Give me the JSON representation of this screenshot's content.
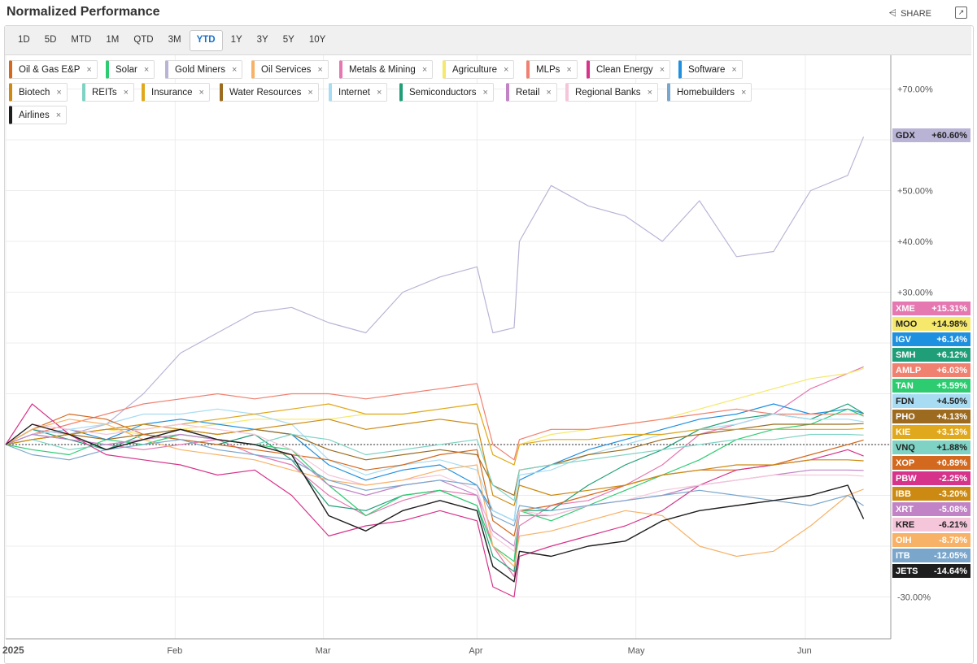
{
  "header": {
    "title": "Normalized Performance",
    "share_label": "SHARE"
  },
  "timeframes": [
    "1D",
    "5D",
    "MTD",
    "1M",
    "QTD",
    "3M",
    "YTD",
    "1Y",
    "3Y",
    "5Y",
    "10Y"
  ],
  "active_timeframe": "YTD",
  "legend": [
    {
      "label": "Oil & Gas E&P",
      "color": "#d2691e"
    },
    {
      "label": "Solar",
      "color": "#2ecc71"
    },
    {
      "label": "Gold Miners",
      "color": "#b9b4d6"
    },
    {
      "label": "Oil Services",
      "color": "#f7b267"
    },
    {
      "label": "Metals & Mining",
      "color": "#e577b1"
    },
    {
      "label": "Agriculture",
      "color": "#f5e86a"
    },
    {
      "label": "MLPs",
      "color": "#f08070"
    },
    {
      "label": "Clean Energy",
      "color": "#d6338a"
    },
    {
      "label": "Software",
      "color": "#1e90e0"
    },
    {
      "label": "Biotech",
      "color": "#cc8a12"
    },
    {
      "label": "REITs",
      "color": "#7fd3c4"
    },
    {
      "label": "Insurance",
      "color": "#e0a81c"
    },
    {
      "label": "Water Resources",
      "color": "#9c6b1f"
    },
    {
      "label": "Internet",
      "color": "#a8dcf2"
    },
    {
      "label": "Semiconductors",
      "color": "#1f9e77"
    },
    {
      "label": "Retail",
      "color": "#c183c6"
    },
    {
      "label": "Regional Banks",
      "color": "#f5c6da"
    },
    {
      "label": "Homebuilders",
      "color": "#7aa6cc"
    },
    {
      "label": "Airlines",
      "color": "#1e1e1e"
    }
  ],
  "chart_data": {
    "type": "line",
    "ylabel_ticks": [
      "+70.00%",
      "+50.00%",
      "+40.00%",
      "+30.00%",
      "-30.00%"
    ],
    "x_tick_labels": [
      "2025",
      "Feb",
      "Mar",
      "Apr",
      "May",
      "Jun"
    ],
    "ylim": [
      -35,
      75
    ],
    "grid": true,
    "legend_position": "top-left",
    "x": [
      "2025-01-02",
      "2025-01-07",
      "2025-01-14",
      "2025-01-21",
      "2025-01-28",
      "2025-02-04",
      "2025-02-11",
      "2025-02-18",
      "2025-02-25",
      "2025-03-04",
      "2025-03-11",
      "2025-03-18",
      "2025-03-25",
      "2025-04-01",
      "2025-04-04",
      "2025-04-08",
      "2025-04-09",
      "2025-04-15",
      "2025-04-22",
      "2025-04-29",
      "2025-05-06",
      "2025-05-13",
      "2025-05-20",
      "2025-05-27",
      "2025-06-03",
      "2025-06-10",
      "2025-06-13"
    ],
    "series": [
      {
        "name": "GDX",
        "value_label": "+60.60%",
        "color": "#b9b4d6",
        "values": [
          0,
          3,
          2,
          4,
          10,
          18,
          22,
          26,
          27,
          24,
          22,
          30,
          33,
          35,
          22,
          23,
          40,
          51,
          47,
          45,
          40,
          48,
          37,
          38,
          50,
          53,
          60.6
        ]
      },
      {
        "name": "XME",
        "value_label": "+15.31%",
        "color": "#e577b1",
        "values": [
          0,
          2,
          1,
          0,
          -1,
          0,
          1,
          -2,
          -4,
          -10,
          -14,
          -11,
          -9,
          -10,
          -20,
          -26,
          -16,
          -12,
          -11,
          -8,
          -4,
          2,
          4,
          6,
          11,
          14,
          15.31
        ]
      },
      {
        "name": "MOO",
        "value_label": "+14.98%",
        "color": "#f5e86a",
        "values": [
          0,
          1,
          2,
          3,
          2,
          3,
          4,
          5,
          5,
          5,
          6,
          6,
          7,
          8,
          -2,
          -4,
          0,
          2,
          3,
          4,
          5,
          7,
          9,
          11,
          13,
          14,
          14.98
        ]
      },
      {
        "name": "IGV",
        "value_label": "+6.14%",
        "color": "#1e90e0",
        "values": [
          0,
          2,
          3,
          1,
          4,
          5,
          4,
          3,
          2,
          -4,
          -7,
          -5,
          -4,
          -8,
          -13,
          -15,
          -7,
          -4,
          -1,
          1,
          3,
          5,
          6,
          8,
          6,
          7,
          6.14
        ]
      },
      {
        "name": "SMH",
        "value_label": "+6.12%",
        "color": "#1f9e77",
        "values": [
          0,
          3,
          1,
          -1,
          2,
          1,
          0,
          2,
          -3,
          -12,
          -13,
          -10,
          -9,
          -12,
          -22,
          -25,
          -13,
          -13,
          -8,
          -4,
          -1,
          3,
          5,
          6,
          5,
          8,
          6.12
        ]
      },
      {
        "name": "AMLP",
        "value_label": "+6.03%",
        "color": "#f08070",
        "values": [
          0,
          2,
          4,
          6,
          8,
          9,
          10,
          9,
          10,
          10,
          9,
          10,
          11,
          12,
          0,
          -3,
          1,
          3,
          3,
          4,
          5,
          6,
          7,
          6,
          6,
          6,
          6.03
        ]
      },
      {
        "name": "TAN",
        "value_label": "+5.59%",
        "color": "#2ecc71",
        "values": [
          0,
          -1,
          -2,
          1,
          0,
          2,
          1,
          0,
          -1,
          -8,
          -14,
          -10,
          -9,
          -12,
          -20,
          -23,
          -13,
          -15,
          -12,
          -9,
          -6,
          -3,
          1,
          3,
          4,
          7,
          5.59
        ]
      },
      {
        "name": "FDN",
        "value_label": "+4.50%",
        "color": "#a8dcf2",
        "values": [
          0,
          2,
          3,
          4,
          6,
          6,
          7,
          6,
          4,
          -3,
          -6,
          -4,
          -3,
          -5,
          -13,
          -15,
          -6,
          -5,
          -2,
          0,
          2,
          3,
          4,
          6,
          5,
          5,
          4.5
        ]
      },
      {
        "name": "PHO",
        "value_label": "+4.13%",
        "color": "#9c6b1f",
        "values": [
          0,
          1,
          2,
          1,
          2,
          3,
          2,
          3,
          2,
          -1,
          -3,
          -2,
          -1,
          -2,
          -8,
          -10,
          -5,
          -4,
          -2,
          -1,
          1,
          2,
          3,
          4,
          4,
          4,
          4.13
        ]
      },
      {
        "name": "KIE",
        "value_label": "+3.13%",
        "color": "#e0a81c",
        "values": [
          0,
          1,
          2,
          3,
          3,
          4,
          5,
          6,
          7,
          8,
          6,
          6,
          7,
          8,
          -2,
          -4,
          0,
          1,
          1,
          2,
          2,
          3,
          3,
          3,
          3,
          3,
          3.13
        ]
      },
      {
        "name": "VNQ",
        "value_label": "+1.88%",
        "color": "#7fd3c4",
        "values": [
          0,
          1,
          -1,
          0,
          1,
          2,
          1,
          0,
          2,
          1,
          -2,
          -1,
          0,
          1,
          -8,
          -11,
          -5,
          -4,
          -3,
          -2,
          -1,
          0,
          1,
          1,
          2,
          2,
          1.88
        ]
      },
      {
        "name": "XOP",
        "value_label": "+0.89%",
        "color": "#d2691e",
        "values": [
          0,
          3,
          6,
          5,
          2,
          1,
          0,
          -1,
          -2,
          -3,
          -5,
          -4,
          -2,
          -1,
          -15,
          -18,
          -13,
          -12,
          -10,
          -8,
          -6,
          -5,
          -5,
          -4,
          -2,
          0,
          0.89
        ]
      },
      {
        "name": "PBW",
        "value_label": "-2.25%",
        "color": "#d6338a",
        "values": [
          0,
          8,
          2,
          -2,
          -3,
          -4,
          -6,
          -5,
          -10,
          -18,
          -16,
          -15,
          -13,
          -15,
          -28,
          -30,
          -22,
          -20,
          -18,
          -16,
          -13,
          -8,
          -5,
          -4,
          -3,
          -1,
          -2.25
        ]
      },
      {
        "name": "IBB",
        "value_label": "-3.20%",
        "color": "#cc8a12",
        "values": [
          0,
          1,
          2,
          3,
          4,
          3,
          2,
          3,
          4,
          5,
          3,
          4,
          5,
          4,
          -10,
          -12,
          -8,
          -10,
          -9,
          -8,
          -6,
          -5,
          -4,
          -4,
          -3,
          -3,
          -3.2
        ]
      },
      {
        "name": "XRT",
        "value_label": "-5.08%",
        "color": "#c183c6",
        "values": [
          0,
          2,
          1,
          0,
          1,
          2,
          1,
          0,
          -2,
          -8,
          -10,
          -8,
          -7,
          -10,
          -17,
          -20,
          -14,
          -14,
          -12,
          -11,
          -10,
          -8,
          -7,
          -6,
          -5,
          -5,
          -5.08
        ]
      },
      {
        "name": "KRE",
        "value_label": "-6.21%",
        "color": "#f5c6da",
        "values": [
          0,
          4,
          3,
          2,
          3,
          4,
          3,
          2,
          -1,
          -6,
          -8,
          -7,
          -6,
          -9,
          -18,
          -21,
          -13,
          -14,
          -12,
          -11,
          -9,
          -8,
          -7,
          -6,
          -6,
          -6,
          -6.21
        ]
      },
      {
        "name": "OIH",
        "value_label": "-8.79%",
        "color": "#f7b267",
        "values": [
          0,
          3,
          5,
          4,
          1,
          -1,
          -2,
          -3,
          -5,
          -7,
          -8,
          -7,
          -5,
          -4,
          -20,
          -24,
          -18,
          -17,
          -15,
          -13,
          -14,
          -20,
          -22,
          -21,
          -16,
          -10,
          -8.79
        ]
      },
      {
        "name": "ITB",
        "value_label": "-12.05%",
        "color": "#7aa6cc",
        "values": [
          0,
          -2,
          -3,
          -1,
          0,
          1,
          -1,
          -2,
          -3,
          -7,
          -9,
          -8,
          -7,
          -8,
          -14,
          -16,
          -12,
          -13,
          -12,
          -11,
          -10,
          -9,
          -10,
          -11,
          -12,
          -10,
          -12.05
        ]
      },
      {
        "name": "JETS",
        "value_label": "-14.64%",
        "color": "#1e1e1e",
        "values": [
          0,
          4,
          2,
          -1,
          1,
          3,
          1,
          0,
          -2,
          -14,
          -17,
          -13,
          -11,
          -13,
          -24,
          -27,
          -21,
          -22,
          -20,
          -19,
          -15,
          -13,
          -12,
          -11,
          -10,
          -8,
          -14.64
        ]
      }
    ]
  }
}
